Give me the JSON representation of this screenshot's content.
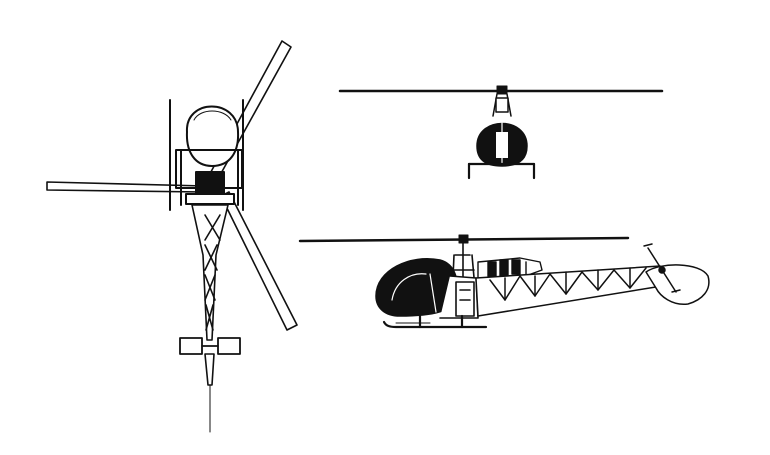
{
  "colors": {
    "background": "#ffffff",
    "ink": "#111111",
    "canopy_tint": "#dddddd"
  }
}
